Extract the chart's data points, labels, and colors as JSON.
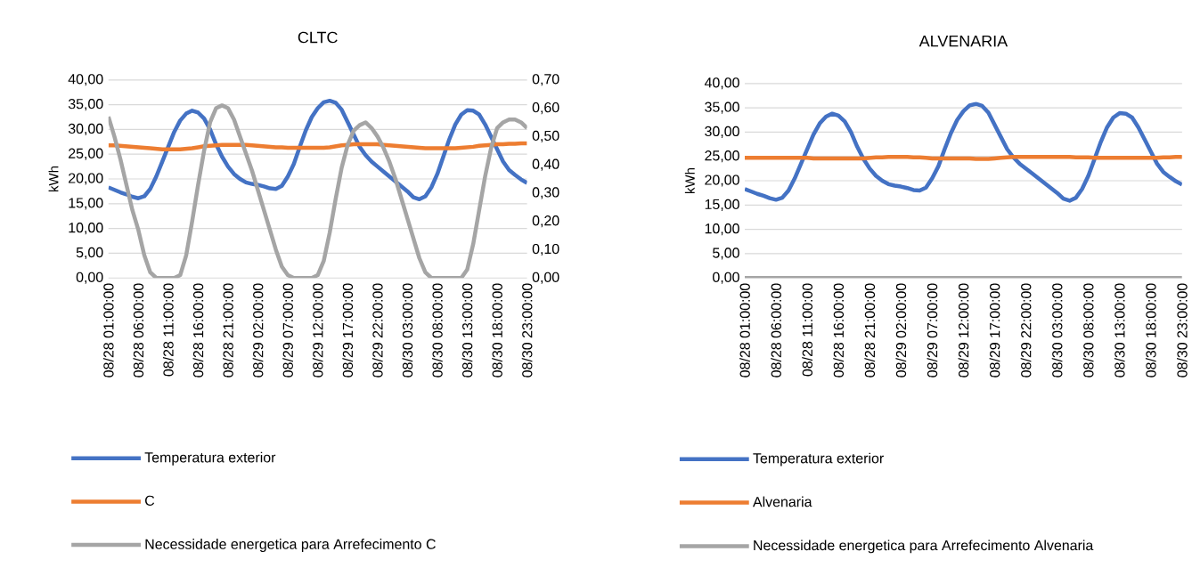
{
  "chart_data": [
    {
      "type": "line",
      "title": "CLTC",
      "ylabel": "kWh",
      "categories": [
        "08/28  01:00:00",
        null,
        null,
        null,
        null,
        "08/28  06:00:00",
        null,
        null,
        null,
        null,
        "08/28  11:00:00",
        null,
        null,
        null,
        null,
        "08/28  16:00:00",
        null,
        null,
        null,
        null,
        "08/28  21:00:00",
        null,
        null,
        null,
        null,
        "08/29  02:00:00",
        null,
        null,
        null,
        null,
        "08/29  07:00:00",
        null,
        null,
        null,
        null,
        "08/29  12:00:00",
        null,
        null,
        null,
        null,
        "08/29  17:00:00",
        null,
        null,
        null,
        null,
        "08/29  22:00:00",
        null,
        null,
        null,
        null,
        "08/30  03:00:00",
        null,
        null,
        null,
        null,
        "08/30  08:00:00",
        null,
        null,
        null,
        null,
        "08/30  13:00:00",
        null,
        null,
        null,
        null,
        "08/30  18:00:00",
        null,
        null,
        null,
        null,
        "08/30  23:00:00"
      ],
      "series": [
        {
          "name": "Temperatura exterior",
          "color": "#4472c4",
          "values": [
            18.3,
            17.8,
            17.3,
            16.9,
            16.4,
            16.1,
            16.5,
            18.0,
            20.5,
            23.5,
            26.5,
            29.5,
            31.8,
            33.2,
            33.8,
            33.4,
            32.2,
            30.0,
            27.0,
            24.5,
            22.5,
            21.0,
            20.0,
            19.3,
            19.0,
            18.8,
            18.5,
            18.1,
            18.0,
            18.6,
            20.5,
            23.0,
            26.5,
            29.8,
            32.5,
            34.3,
            35.5,
            35.8,
            35.4,
            34.0,
            31.5,
            29.0,
            26.5,
            24.8,
            23.5,
            22.5,
            21.5,
            20.5,
            19.5,
            18.5,
            17.5,
            16.3,
            15.9,
            16.5,
            18.3,
            21.0,
            24.5,
            28.0,
            31.0,
            33.0,
            33.9,
            33.8,
            33.0,
            31.0,
            28.5,
            26.0,
            23.5,
            21.8,
            20.8,
            19.9,
            19.2
          ]
        },
        {
          "name": "C",
          "color": "#ed7d31",
          "values": [
            26.8,
            26.8,
            26.7,
            26.6,
            26.5,
            26.4,
            26.3,
            26.2,
            26.1,
            26.0,
            26.0,
            26.0,
            26.0,
            26.1,
            26.2,
            26.4,
            26.6,
            26.7,
            26.8,
            26.9,
            26.9,
            26.9,
            26.9,
            26.9,
            26.8,
            26.7,
            26.6,
            26.5,
            26.4,
            26.4,
            26.3,
            26.3,
            26.3,
            26.3,
            26.3,
            26.3,
            26.3,
            26.4,
            26.6,
            26.8,
            26.9,
            27.0,
            27.0,
            27.0,
            27.0,
            27.0,
            26.9,
            26.8,
            26.7,
            26.6,
            26.5,
            26.4,
            26.3,
            26.2,
            26.2,
            26.2,
            26.2,
            26.2,
            26.2,
            26.3,
            26.4,
            26.5,
            26.7,
            26.8,
            26.9,
            27.0,
            27.0,
            27.1,
            27.1,
            27.2,
            27.2
          ]
        },
        {
          "name": "Necessidade energetica para Arrefecimento C",
          "color": "#a5a5a5",
          "axis": "y2",
          "values": [
            0.57,
            0.5,
            0.42,
            0.33,
            0.24,
            0.17,
            0.08,
            0.02,
            0,
            0,
            0,
            0,
            0.01,
            0.08,
            0.2,
            0.33,
            0.45,
            0.55,
            0.6,
            0.61,
            0.6,
            0.56,
            0.5,
            0.44,
            0.38,
            0.31,
            0.24,
            0.17,
            0.1,
            0.04,
            0.01,
            0,
            0,
            0,
            0,
            0.01,
            0.06,
            0.16,
            0.28,
            0.39,
            0.47,
            0.52,
            0.54,
            0.55,
            0.53,
            0.5,
            0.46,
            0.41,
            0.35,
            0.28,
            0.21,
            0.14,
            0.07,
            0.02,
            0,
            0,
            0,
            0,
            0,
            0,
            0.03,
            0.12,
            0.24,
            0.36,
            0.46,
            0.53,
            0.55,
            0.56,
            0.56,
            0.55,
            0.53
          ]
        }
      ],
      "ylim": [
        0,
        40
      ],
      "yticks": [
        {
          "value": 0,
          "label": "0,00"
        },
        {
          "value": 5,
          "label": "5,00"
        },
        {
          "value": 10,
          "label": "10,00"
        },
        {
          "value": 15,
          "label": "15,00"
        },
        {
          "value": 20,
          "label": "20,00"
        },
        {
          "value": 25,
          "label": "25,00"
        },
        {
          "value": 30,
          "label": "30,00"
        },
        {
          "value": 35,
          "label": "35,00"
        },
        {
          "value": 40,
          "label": "40,00"
        }
      ],
      "y2lim": [
        0,
        0.7
      ],
      "y2ticks": [
        {
          "value": 0,
          "label": "0,00"
        },
        {
          "value": 0.1,
          "label": "0,10"
        },
        {
          "value": 0.2,
          "label": "0,20"
        },
        {
          "value": 0.3,
          "label": "0,30"
        },
        {
          "value": 0.4,
          "label": "0,40"
        },
        {
          "value": 0.5,
          "label": "0,50"
        },
        {
          "value": 0.6,
          "label": "0,60"
        },
        {
          "value": 0.7,
          "label": "0,70"
        }
      ],
      "grid": "y",
      "legend": "bottom",
      "marker": "none",
      "line_style": "solid"
    },
    {
      "type": "line",
      "title": "ALVENARIA",
      "ylabel": "kWh",
      "categories": [
        "08/28  01:00:00",
        null,
        null,
        null,
        null,
        "08/28  06:00:00",
        null,
        null,
        null,
        null,
        "08/28  11:00:00",
        null,
        null,
        null,
        null,
        "08/28  16:00:00",
        null,
        null,
        null,
        null,
        "08/28  21:00:00",
        null,
        null,
        null,
        null,
        "08/29  02:00:00",
        null,
        null,
        null,
        null,
        "08/29  07:00:00",
        null,
        null,
        null,
        null,
        "08/29  12:00:00",
        null,
        null,
        null,
        null,
        "08/29  17:00:00",
        null,
        null,
        null,
        null,
        "08/29  22:00:00",
        null,
        null,
        null,
        null,
        "08/30  03:00:00",
        null,
        null,
        null,
        null,
        "08/30  08:00:00",
        null,
        null,
        null,
        null,
        "08/30  13:00:00",
        null,
        null,
        null,
        null,
        "08/30  18:00:00",
        null,
        null,
        null,
        null,
        "08/30  23:00:00"
      ],
      "series": [
        {
          "name": "Temperatura exterior",
          "color": "#4472c4",
          "values": [
            18.3,
            17.8,
            17.3,
            16.9,
            16.4,
            16.1,
            16.5,
            18.0,
            20.5,
            23.5,
            26.5,
            29.5,
            31.8,
            33.2,
            33.8,
            33.4,
            32.2,
            30.0,
            27.0,
            24.5,
            22.5,
            21.0,
            20.0,
            19.3,
            19.0,
            18.8,
            18.5,
            18.1,
            18.0,
            18.6,
            20.5,
            23.0,
            26.5,
            29.8,
            32.5,
            34.3,
            35.5,
            35.8,
            35.4,
            34.0,
            31.5,
            29.0,
            26.5,
            24.8,
            23.5,
            22.5,
            21.5,
            20.5,
            19.5,
            18.5,
            17.5,
            16.3,
            15.9,
            16.5,
            18.3,
            21.0,
            24.5,
            28.0,
            31.0,
            33.0,
            33.9,
            33.8,
            33.0,
            31.0,
            28.5,
            26.0,
            23.5,
            21.8,
            20.8,
            19.9,
            19.2
          ]
        },
        {
          "name": "Alvenaria",
          "color": "#ed7d31",
          "values": [
            24.7,
            24.7,
            24.7,
            24.7,
            24.7,
            24.7,
            24.7,
            24.7,
            24.7,
            24.7,
            24.7,
            24.6,
            24.6,
            24.6,
            24.6,
            24.6,
            24.6,
            24.6,
            24.6,
            24.6,
            24.7,
            24.8,
            24.8,
            24.9,
            24.9,
            24.9,
            24.9,
            24.8,
            24.8,
            24.7,
            24.6,
            24.6,
            24.6,
            24.6,
            24.6,
            24.6,
            24.6,
            24.5,
            24.5,
            24.5,
            24.6,
            24.7,
            24.8,
            24.9,
            24.9,
            24.9,
            24.9,
            24.9,
            24.9,
            24.9,
            24.9,
            24.9,
            24.9,
            24.8,
            24.8,
            24.8,
            24.7,
            24.7,
            24.7,
            24.7,
            24.7,
            24.7,
            24.7,
            24.7,
            24.7,
            24.7,
            24.7,
            24.8,
            24.8,
            24.9,
            24.9
          ]
        },
        {
          "name": "Necessidade energetica para Arrefecimento Alvenaria",
          "color": "#a5a5a5",
          "values": [
            0,
            0,
            0,
            0,
            0,
            0,
            0,
            0,
            0,
            0,
            0,
            0,
            0,
            0,
            0,
            0,
            0,
            0,
            0,
            0,
            0,
            0,
            0,
            0,
            0,
            0,
            0,
            0,
            0,
            0,
            0,
            0,
            0,
            0,
            0,
            0,
            0,
            0,
            0,
            0,
            0,
            0,
            0,
            0,
            0,
            0,
            0,
            0,
            0,
            0,
            0,
            0,
            0,
            0,
            0,
            0,
            0,
            0,
            0,
            0,
            0,
            0,
            0,
            0,
            0,
            0,
            0,
            0,
            0,
            0,
            0
          ]
        }
      ],
      "ylim": [
        0,
        40
      ],
      "yticks": [
        {
          "value": 0,
          "label": "0,00"
        },
        {
          "value": 5,
          "label": "5,00"
        },
        {
          "value": 10,
          "label": "10,00"
        },
        {
          "value": 15,
          "label": "15,00"
        },
        {
          "value": 20,
          "label": "20,00"
        },
        {
          "value": 25,
          "label": "25,00"
        },
        {
          "value": 30,
          "label": "30,00"
        },
        {
          "value": 35,
          "label": "35,00"
        },
        {
          "value": 40,
          "label": "40,00"
        }
      ],
      "grid": "y",
      "legend": "bottom",
      "marker": "none",
      "line_style": "solid"
    }
  ]
}
